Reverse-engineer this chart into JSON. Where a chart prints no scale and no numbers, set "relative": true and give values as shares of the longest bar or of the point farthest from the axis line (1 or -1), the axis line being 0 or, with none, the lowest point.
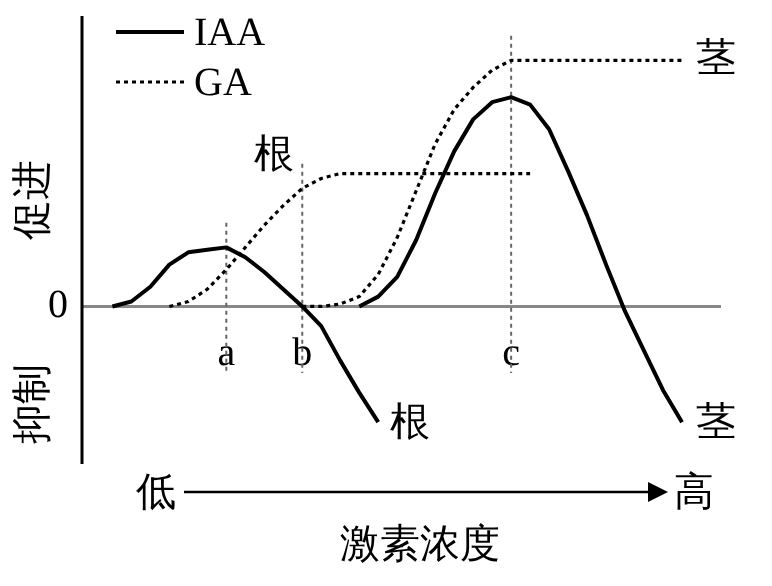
{
  "chart_data": {
    "type": "line",
    "relative": true,
    "xlabel": "激素浓度",
    "legend": "top left",
    "categories": [
      null,
      null,
      null,
      null,
      null,
      null,
      "a",
      null,
      null,
      null,
      "b",
      null,
      null,
      null,
      null,
      null,
      null,
      null,
      null,
      null,
      null,
      "c",
      null,
      null,
      null,
      null,
      null,
      null,
      null,
      null,
      null
    ],
    "series": [
      {
        "name": "IAA",
        "color": "#000000",
        "line_style": "solid",
        "values": [
          0,
          0.02,
          0.08,
          0.17,
          0.22,
          0.23,
          0.24,
          0.2,
          0.14,
          0.07,
          0,
          -0.08,
          -0.22,
          -0.35,
          -0.47,
          null,
          null,
          null,
          null,
          null,
          null,
          null,
          null,
          null,
          null,
          null,
          null,
          null,
          null,
          null,
          null
        ]
      },
      {
        "name": "GA",
        "color": "#000000",
        "line_style": "dotted",
        "values": [
          null,
          null,
          null,
          0,
          0.02,
          0.07,
          0.15,
          0.24,
          0.33,
          0.41,
          0.48,
          0.52,
          0.54,
          0.54,
          0.54,
          0.54,
          0.54,
          0.54,
          0.54,
          0.54,
          0.54,
          0.54,
          0.54,
          null,
          null,
          null,
          null,
          null,
          null,
          null,
          null
        ]
      },
      {
        "color": "#000000",
        "line_style": "solid",
        "values": [
          null,
          null,
          null,
          null,
          null,
          null,
          null,
          null,
          null,
          null,
          null,
          null,
          null,
          0,
          0.04,
          0.12,
          0.27,
          0.46,
          0.63,
          0.76,
          0.83,
          0.85,
          0.82,
          0.72,
          0.55,
          0.37,
          0.17,
          -0.02,
          -0.18,
          -0.34,
          -0.47
        ]
      },
      {
        "color": "#000000",
        "line_style": "dotted",
        "values": [
          null,
          null,
          null,
          null,
          null,
          null,
          null,
          null,
          null,
          null,
          0,
          0,
          0.01,
          0.04,
          0.13,
          0.28,
          0.47,
          0.66,
          0.8,
          0.89,
          0.96,
          1,
          1,
          1,
          1,
          1,
          1,
          1,
          1,
          1,
          1
        ]
      }
    ],
    "ref_lines": [
      {
        "axis": "x",
        "value": "a",
        "line_style": "dotted"
      },
      {
        "axis": "x",
        "value": "b",
        "line_style": "dotted"
      },
      {
        "axis": "x",
        "value": "c",
        "line_style": "dotted"
      }
    ],
    "annotations": [
      "根",
      "根",
      "茎",
      "茎",
      "促进",
      "抑制",
      "0",
      "低",
      "高"
    ]
  }
}
